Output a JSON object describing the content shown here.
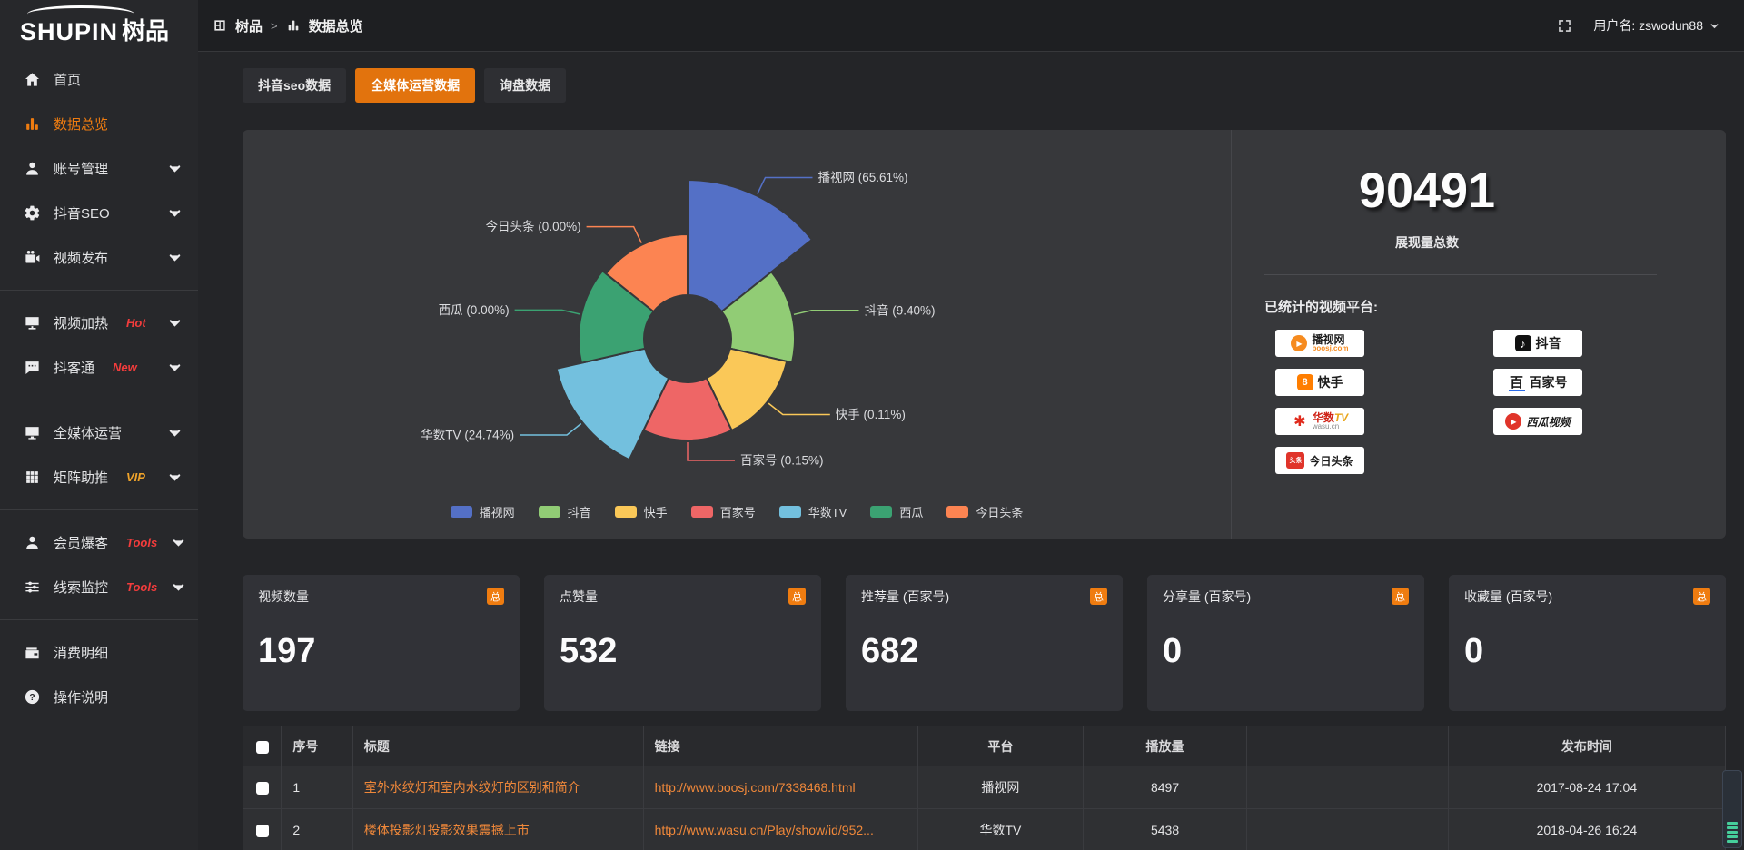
{
  "accent": "#ef7c10",
  "logo": {
    "text_en": "SHUPIN",
    "text_cn": "树品"
  },
  "topbar": {
    "breadcrumb": [
      {
        "icon": "app",
        "label": "树品"
      },
      {
        "icon": "bars",
        "label": "数据总览"
      }
    ],
    "separator": ">",
    "user_label": "用户名: zswodun88"
  },
  "sidebar": {
    "items": [
      {
        "icon": "home",
        "label": "首页"
      },
      {
        "icon": "bars",
        "label": "数据总览",
        "active": true
      },
      {
        "icon": "user",
        "label": "账号管理",
        "chevron": true
      },
      {
        "icon": "gear",
        "label": "抖音SEO",
        "chevron": true
      },
      {
        "icon": "video",
        "label": "视频发布",
        "chevron": true
      },
      {
        "divider": true
      },
      {
        "icon": "screen",
        "label": "视频加热",
        "badge": "Hot",
        "badge_color": "#f23c3c",
        "chevron": true
      },
      {
        "icon": "chat",
        "label": "抖客通",
        "badge": "New",
        "badge_color": "#f23c3c",
        "chevron": true
      },
      {
        "divider": true
      },
      {
        "icon": "monitor",
        "label": "全媒体运营",
        "chevron": true
      },
      {
        "icon": "grid",
        "label": "矩阵助推",
        "badge": "VIP",
        "badge_color": "#efa32a",
        "chevron": true
      },
      {
        "divider": true
      },
      {
        "icon": "user",
        "label": "会员爆客",
        "badge": "Tools",
        "badge_color": "#f23c3c",
        "chevron": true
      },
      {
        "icon": "sliders",
        "label": "线索监控",
        "badge": "Tools",
        "badge_color": "#f23c3c",
        "chevron": true
      },
      {
        "divider": true
      },
      {
        "icon": "wallet",
        "label": "消费明细"
      },
      {
        "icon": "question",
        "label": "操作说明"
      }
    ]
  },
  "tabs": [
    {
      "label": "抖音seo数据"
    },
    {
      "label": "全媒体运营数据",
      "active": true
    },
    {
      "label": "询盘数据"
    }
  ],
  "chart_data": {
    "type": "pie",
    "variant": "nightingale-rose",
    "unit": "%",
    "inner_radius": 48,
    "legend_position": "bottom",
    "label_format": "{name} ({value}%)",
    "series": [
      {
        "name": "播视网",
        "value": 65.61,
        "color": "#5470c6",
        "display_radius": 175
      },
      {
        "name": "抖音",
        "value": 9.4,
        "color": "#91cc75",
        "display_radius": 118
      },
      {
        "name": "快手",
        "value": 0.11,
        "color": "#fac858",
        "display_radius": 112
      },
      {
        "name": "百家号",
        "value": 0.15,
        "color": "#ee6666",
        "display_radius": 112
      },
      {
        "name": "华数TV",
        "value": 24.74,
        "color": "#73c0de",
        "display_radius": 148
      },
      {
        "name": "西瓜",
        "value": 0.0,
        "color": "#3ba272",
        "display_radius": 120
      },
      {
        "name": "今日头条",
        "value": 0.0,
        "color": "#fc8452",
        "display_radius": 115
      }
    ]
  },
  "summary": {
    "total_value": "90491",
    "total_label": "展现量总数",
    "platforms_title": "已统计的视频平台:",
    "platforms": [
      {
        "name": "播视网",
        "sub": "boosj.com",
        "logo": "boosj"
      },
      {
        "name": "抖音",
        "logo": "douyin"
      },
      {
        "name": "快手",
        "logo": "kuaishou"
      },
      {
        "name": "百家号",
        "logo": "baijiahao"
      },
      {
        "name": "华数TV",
        "sub": "wasu.cn",
        "logo": "wasu"
      },
      {
        "name": "西瓜视频",
        "logo": "xigua"
      },
      {
        "name": "今日头条",
        "logo": "toutiao"
      }
    ]
  },
  "stat_cards": [
    {
      "title": "视频数量",
      "badge": "总",
      "value": "197"
    },
    {
      "title": "点赞量",
      "badge": "总",
      "value": "532"
    },
    {
      "title": "推荐量 (百家号)",
      "badge": "总",
      "value": "682"
    },
    {
      "title": "分享量 (百家号)",
      "badge": "总",
      "value": "0"
    },
    {
      "title": "收藏量 (百家号)",
      "badge": "总",
      "value": "0"
    }
  ],
  "table": {
    "columns": [
      "",
      "序号",
      "标题",
      "链接",
      "平台",
      "播放量",
      "",
      "发布时间"
    ],
    "rows": [
      {
        "index": "1",
        "title": "室外水纹灯和室内水纹灯的区别和简介",
        "link": "http://www.boosj.com/7338468.html",
        "platform": "播视网",
        "plays": "8497",
        "time": "2017-08-24 17:04"
      },
      {
        "index": "2",
        "title": "楼体投影灯投影效果震撼上市",
        "link": "http://www.wasu.cn/Play/show/id/952...",
        "platform": "华数TV",
        "plays": "5438",
        "time": "2018-04-26 16:24"
      }
    ]
  }
}
